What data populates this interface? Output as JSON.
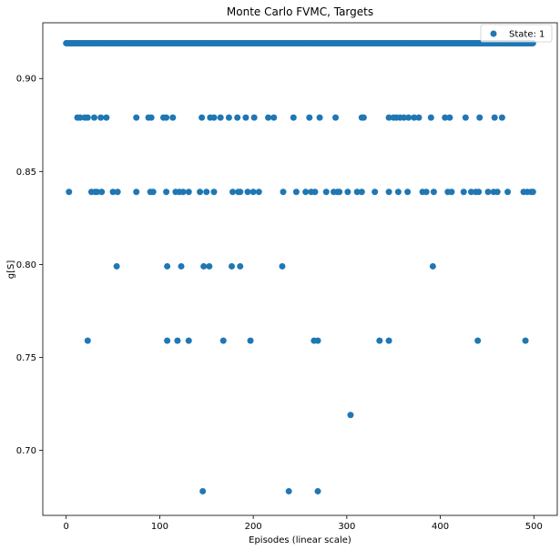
{
  "chart_data": {
    "type": "scatter",
    "title": "Monte Carlo FVMC, Targets",
    "xlabel": "Episodes (linear scale)",
    "ylabel": "g[S]",
    "xlim": [
      -25,
      525
    ],
    "ylim": [
      0.665,
      0.93
    ],
    "xticks": [
      0,
      100,
      200,
      300,
      400,
      500
    ],
    "xtick_labels": [
      "0",
      "100",
      "200",
      "300",
      "400",
      "500"
    ],
    "yticks": [
      0.7,
      0.75,
      0.8,
      0.85,
      0.9
    ],
    "ytick_labels": [
      "0.70",
      "0.75",
      "0.80",
      "0.85",
      "0.90"
    ],
    "grid": false,
    "legend": {
      "position": "top-right",
      "entries": [
        "State: 1"
      ]
    },
    "color": "#1f77b4",
    "series": [
      {
        "name": "State: 1",
        "top_band": {
          "y": 0.919,
          "x_from": 0,
          "x_to": 499,
          "step": 1
        },
        "points": [
          [
            12,
            0.879
          ],
          [
            15,
            0.879
          ],
          [
            20,
            0.879
          ],
          [
            23,
            0.879
          ],
          [
            30,
            0.879
          ],
          [
            37,
            0.879
          ],
          [
            43,
            0.879
          ],
          [
            75,
            0.879
          ],
          [
            88,
            0.879
          ],
          [
            91,
            0.879
          ],
          [
            104,
            0.879
          ],
          [
            107,
            0.879
          ],
          [
            114,
            0.879
          ],
          [
            145,
            0.879
          ],
          [
            154,
            0.879
          ],
          [
            158,
            0.879
          ],
          [
            165,
            0.879
          ],
          [
            174,
            0.879
          ],
          [
            183,
            0.879
          ],
          [
            192,
            0.879
          ],
          [
            201,
            0.879
          ],
          [
            216,
            0.879
          ],
          [
            222,
            0.879
          ],
          [
            243,
            0.879
          ],
          [
            260,
            0.879
          ],
          [
            271,
            0.879
          ],
          [
            288,
            0.879
          ],
          [
            316,
            0.879
          ],
          [
            318,
            0.879
          ],
          [
            345,
            0.879
          ],
          [
            350,
            0.879
          ],
          [
            353,
            0.879
          ],
          [
            357,
            0.879
          ],
          [
            361,
            0.879
          ],
          [
            366,
            0.879
          ],
          [
            372,
            0.879
          ],
          [
            377,
            0.879
          ],
          [
            390,
            0.879
          ],
          [
            405,
            0.879
          ],
          [
            410,
            0.879
          ],
          [
            427,
            0.879
          ],
          [
            442,
            0.879
          ],
          [
            458,
            0.879
          ],
          [
            466,
            0.879
          ],
          [
            3,
            0.839
          ],
          [
            27,
            0.839
          ],
          [
            31,
            0.839
          ],
          [
            33,
            0.839
          ],
          [
            38,
            0.839
          ],
          [
            50,
            0.839
          ],
          [
            55,
            0.839
          ],
          [
            75,
            0.839
          ],
          [
            90,
            0.839
          ],
          [
            93,
            0.839
          ],
          [
            107,
            0.839
          ],
          [
            117,
            0.839
          ],
          [
            121,
            0.839
          ],
          [
            125,
            0.839
          ],
          [
            131,
            0.839
          ],
          [
            143,
            0.839
          ],
          [
            150,
            0.839
          ],
          [
            158,
            0.839
          ],
          [
            178,
            0.839
          ],
          [
            184,
            0.839
          ],
          [
            186,
            0.839
          ],
          [
            194,
            0.839
          ],
          [
            200,
            0.839
          ],
          [
            206,
            0.839
          ],
          [
            232,
            0.839
          ],
          [
            246,
            0.839
          ],
          [
            256,
            0.839
          ],
          [
            262,
            0.839
          ],
          [
            266,
            0.839
          ],
          [
            278,
            0.839
          ],
          [
            286,
            0.839
          ],
          [
            290,
            0.839
          ],
          [
            292,
            0.839
          ],
          [
            301,
            0.839
          ],
          [
            311,
            0.839
          ],
          [
            316,
            0.839
          ],
          [
            330,
            0.839
          ],
          [
            345,
            0.839
          ],
          [
            355,
            0.839
          ],
          [
            365,
            0.839
          ],
          [
            381,
            0.839
          ],
          [
            385,
            0.839
          ],
          [
            393,
            0.839
          ],
          [
            408,
            0.839
          ],
          [
            412,
            0.839
          ],
          [
            425,
            0.839
          ],
          [
            433,
            0.839
          ],
          [
            438,
            0.839
          ],
          [
            441,
            0.839
          ],
          [
            451,
            0.839
          ],
          [
            457,
            0.839
          ],
          [
            461,
            0.839
          ],
          [
            472,
            0.839
          ],
          [
            489,
            0.839
          ],
          [
            493,
            0.839
          ],
          [
            497,
            0.839
          ],
          [
            499,
            0.839
          ],
          [
            54,
            0.799
          ],
          [
            108,
            0.799
          ],
          [
            123,
            0.799
          ],
          [
            147,
            0.799
          ],
          [
            153,
            0.799
          ],
          [
            177,
            0.799
          ],
          [
            186,
            0.799
          ],
          [
            231,
            0.799
          ],
          [
            392,
            0.799
          ],
          [
            23,
            0.759
          ],
          [
            108,
            0.759
          ],
          [
            119,
            0.759
          ],
          [
            131,
            0.759
          ],
          [
            168,
            0.759
          ],
          [
            197,
            0.759
          ],
          [
            265,
            0.759
          ],
          [
            269,
            0.759
          ],
          [
            335,
            0.759
          ],
          [
            345,
            0.759
          ],
          [
            440,
            0.759
          ],
          [
            491,
            0.759
          ],
          [
            304,
            0.719
          ],
          [
            146,
            0.678
          ],
          [
            238,
            0.678
          ],
          [
            269,
            0.678
          ]
        ]
      }
    ]
  }
}
